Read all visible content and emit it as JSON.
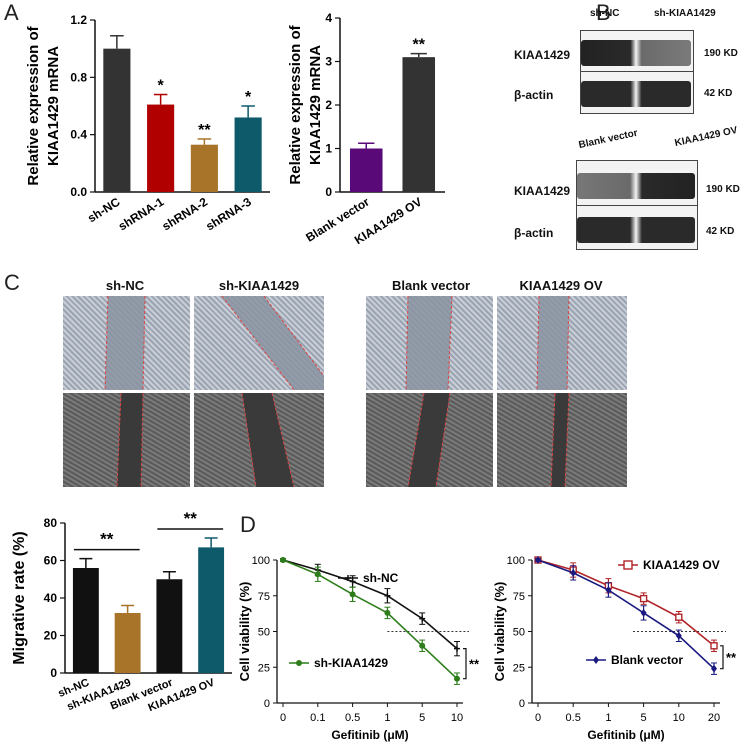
{
  "panels": {
    "a": "A",
    "b": "B",
    "c": "C",
    "d": "D"
  },
  "colors": {
    "black": "#333333",
    "red": "#b00000",
    "brown": "#a8742a",
    "teal": "#0e5a6a",
    "purple": "#5a0a78",
    "green": "#2d7d1a",
    "navy": "#1a1a80",
    "darkred": "#b0252a"
  },
  "chart_data": [
    {
      "id": "A1",
      "type": "bar",
      "ylabel": "Relative expression of KIAA1429 mRNA",
      "ylabel_lines": [
        "Relative expression of",
        "KIAA1429 mRNA"
      ],
      "categories": [
        "sh-NC",
        "shRNA-1",
        "shRNA-2",
        "shRNA-3"
      ],
      "values": [
        1.0,
        0.61,
        0.33,
        0.52
      ],
      "errors": [
        0.09,
        0.07,
        0.04,
        0.08
      ],
      "significance": [
        "",
        "*",
        "**",
        "*"
      ],
      "colors": [
        "#333333",
        "#b00000",
        "#a8742a",
        "#0e5a6a"
      ],
      "ylim": [
        0,
        1.2
      ],
      "yticks": [
        "0.0",
        "0.4",
        "0.8",
        "1.2"
      ]
    },
    {
      "id": "A2",
      "type": "bar",
      "ylabel": "Relative expression of KIAA1429 mRNA",
      "ylabel_lines": [
        "Relative expression of",
        "KIAA1429 mRNA"
      ],
      "categories": [
        "Blank vector",
        "KIAA1429 OV"
      ],
      "values": [
        1.0,
        3.1
      ],
      "errors": [
        0.12,
        0.08
      ],
      "significance": [
        "",
        "**"
      ],
      "colors": [
        "#5a0a78",
        "#333333"
      ],
      "ylim": [
        0,
        4
      ],
      "yticks": [
        "0",
        "1",
        "2",
        "3",
        "4"
      ]
    },
    {
      "id": "C1",
      "type": "bar",
      "ylabel": "Migrative rate (%)",
      "categories": [
        "sh-NC",
        "sh-KIAA1429",
        "Blank vector",
        "KIAA1429 OV"
      ],
      "values": [
        56,
        32,
        50,
        67
      ],
      "errors": [
        5,
        4,
        4,
        5
      ],
      "colors": [
        "#111111",
        "#a8742a",
        "#111111",
        "#0e5a6a"
      ],
      "ylim": [
        0,
        80
      ],
      "yticks": [
        "0",
        "20",
        "40",
        "60",
        "80"
      ],
      "brackets": [
        {
          "label": "**"
        },
        {
          "label": "**"
        }
      ]
    },
    {
      "id": "D1",
      "type": "line",
      "xlabel": "Gefitinib (μM)",
      "ylabel": "Cell viability (%)",
      "x": [
        "0",
        "0.1",
        "0.5",
        "1",
        "5",
        "10"
      ],
      "ylim": [
        0,
        100
      ],
      "yticks": [
        "0",
        "25",
        "50",
        "75",
        "100"
      ],
      "reference_y": 50,
      "series": [
        {
          "name": "sh-NC",
          "values": [
            100,
            93,
            85,
            75,
            59,
            38
          ],
          "errors": [
            1,
            4,
            4,
            5,
            4,
            5
          ],
          "color": "#111111",
          "marker": "+"
        },
        {
          "name": "sh-KIAA1429",
          "values": [
            100,
            90,
            76,
            63,
            40,
            17
          ],
          "errors": [
            1,
            5,
            5,
            4,
            4,
            4
          ],
          "color": "#2d7d1a",
          "marker": "o"
        }
      ],
      "significance": "**"
    },
    {
      "id": "D2",
      "type": "line",
      "xlabel": "Gefitinib (μM)",
      "ylabel": "Cell viability (%)",
      "x": [
        "0",
        "0.5",
        "1",
        "5",
        "10",
        "20"
      ],
      "ylim": [
        0,
        100
      ],
      "yticks": [
        "0",
        "25",
        "50",
        "75",
        "100"
      ],
      "reference_y": 50,
      "series": [
        {
          "name": "KIAA1429 OV",
          "values": [
            100,
            93,
            82,
            73,
            60,
            40
          ],
          "errors": [
            1,
            5,
            5,
            4,
            4,
            4
          ],
          "color": "#b0252a",
          "marker": "s"
        },
        {
          "name": "Blank vector",
          "values": [
            100,
            91,
            79,
            63,
            47,
            24
          ],
          "errors": [
            1,
            5,
            5,
            5,
            4,
            4
          ],
          "color": "#1a1a80",
          "marker": "d"
        }
      ],
      "significance": "**"
    }
  ],
  "western": {
    "top": {
      "headers": [
        "sh-NC",
        "sh-KIAA1429"
      ],
      "rows": [
        {
          "label": "KIAA1429",
          "kd": "190 KD"
        },
        {
          "label": "β-actin",
          "kd": "42 KD"
        }
      ]
    },
    "bottom": {
      "headers": [
        "Blank vector",
        "KIAA1429 OV"
      ],
      "rows": [
        {
          "label": "KIAA1429",
          "kd": "190 KD"
        },
        {
          "label": "β-actin",
          "kd": "42 KD"
        }
      ]
    }
  },
  "wound_labels": [
    "sh-NC",
    "sh-KIAA1429",
    "Blank vector",
    "KIAA1429 OV"
  ]
}
